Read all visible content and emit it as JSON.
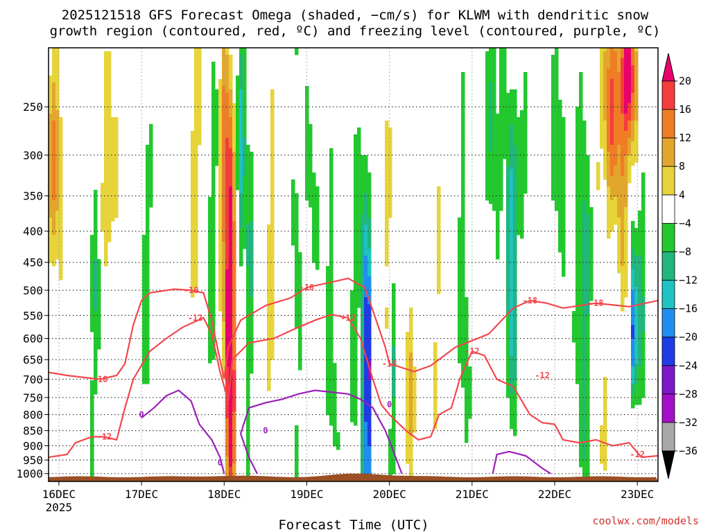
{
  "title": {
    "line1": "2025121518 GFS Forecast Omega (shaded, −cm/s) for KLWM with dendritic snow",
    "line2": "growth region (contoured, red, ºC) and freezing level (contoured, purple, ºC)"
  },
  "x_axis_label": "Forecast Time (UTC)",
  "credit": "coolwx.com/models",
  "chart_data": {
    "type": "heatmap",
    "title": "2025121518 GFS Forecast Omega (shaded, −cm/s) for KLWM with dendritic snow growth region (contoured, red, ºC) and freezing level (contoured, purple, ºC)",
    "xlabel": "Forecast Time (UTC)",
    "ylabel": "",
    "x_ticks": [
      {
        "value": 0,
        "label": "16DEC",
        "sublabel": "2025"
      },
      {
        "value": 1,
        "label": "17DEC"
      },
      {
        "value": 2,
        "label": "18DEC"
      },
      {
        "value": 3,
        "label": "19DEC"
      },
      {
        "value": 4,
        "label": "20DEC"
      },
      {
        "value": 5,
        "label": "21DEC"
      },
      {
        "value": 6,
        "label": "22DEC"
      },
      {
        "value": 7,
        "label": "23DEC"
      }
    ],
    "xlim": [
      -0.125,
      7.25
    ],
    "y_ticks": [
      250,
      300,
      350,
      400,
      450,
      500,
      550,
      600,
      650,
      700,
      750,
      800,
      850,
      900,
      950,
      1000
    ],
    "ylim": [
      1030,
      200
    ],
    "y_scale": "log",
    "grid": true,
    "colorbar": {
      "ticks": [
        20,
        16,
        12,
        8,
        4,
        -4,
        -8,
        -12,
        -16,
        -20,
        -24,
        -28,
        -32,
        -36
      ],
      "colors": [
        "#e8006e",
        "#f53c3c",
        "#ee7d24",
        "#e3a62c",
        "#e6d43a",
        "#ffffff",
        "#22c82e",
        "#20b67c",
        "#1ec2c2",
        "#1f8ef0",
        "#1f3ce6",
        "#7a18c8",
        "#a30fc8",
        "#a8a8a8",
        "#000000"
      ],
      "extend": "both"
    },
    "snow_growth_contours": {
      "color": "#f2474b",
      "levels": [
        -12,
        -18
      ],
      "upper_-18": [
        [
          -0.125,
          682
        ],
        [
          0.1,
          690
        ],
        [
          0.5,
          700
        ],
        [
          0.7,
          690
        ],
        [
          0.8,
          660
        ],
        [
          0.9,
          570
        ],
        [
          1.0,
          520
        ],
        [
          1.1,
          505
        ],
        [
          1.4,
          498
        ],
        [
          1.6,
          500
        ],
        [
          1.75,
          505
        ],
        [
          1.85,
          560
        ],
        [
          1.95,
          650
        ],
        [
          2.0,
          700
        ],
        [
          2.05,
          620
        ],
        [
          2.2,
          560
        ],
        [
          2.5,
          530
        ],
        [
          2.8,
          515
        ],
        [
          3.0,
          495
        ],
        [
          3.3,
          485
        ],
        [
          3.5,
          478
        ],
        [
          3.7,
          495
        ],
        [
          3.8,
          540
        ],
        [
          3.95,
          620
        ],
        [
          4.0,
          660
        ],
        [
          4.3,
          680
        ],
        [
          4.5,
          665
        ],
        [
          4.8,
          620
        ],
        [
          5.0,
          605
        ],
        [
          5.2,
          590
        ],
        [
          5.5,
          535
        ],
        [
          5.7,
          520
        ],
        [
          5.9,
          525
        ],
        [
          6.0,
          530
        ],
        [
          6.1,
          535
        ],
        [
          6.5,
          525
        ],
        [
          6.9,
          532
        ],
        [
          7.25,
          520
        ]
      ],
      "lower_-12": [
        [
          -0.125,
          940
        ],
        [
          0.1,
          930
        ],
        [
          0.2,
          890
        ],
        [
          0.4,
          870
        ],
        [
          0.55,
          870
        ],
        [
          0.7,
          880
        ],
        [
          0.8,
          780
        ],
        [
          0.9,
          700
        ],
        [
          1.1,
          630
        ],
        [
          1.3,
          600
        ],
        [
          1.5,
          575
        ],
        [
          1.75,
          555
        ],
        [
          1.85,
          590
        ],
        [
          1.95,
          680
        ],
        [
          2.05,
          760
        ],
        [
          2.1,
          650
        ],
        [
          2.3,
          610
        ],
        [
          2.6,
          600
        ],
        [
          2.9,
          575
        ],
        [
          3.1,
          560
        ],
        [
          3.3,
          548
        ],
        [
          3.5,
          555
        ],
        [
          3.65,
          600
        ],
        [
          3.8,
          700
        ],
        [
          3.9,
          770
        ],
        [
          4.0,
          800
        ],
        [
          4.2,
          850
        ],
        [
          4.35,
          880
        ],
        [
          4.5,
          870
        ],
        [
          4.6,
          800
        ],
        [
          4.75,
          780
        ],
        [
          4.85,
          700
        ],
        [
          5.0,
          630
        ],
        [
          5.15,
          640
        ],
        [
          5.3,
          700
        ],
        [
          5.5,
          720
        ],
        [
          5.7,
          800
        ],
        [
          5.85,
          825
        ],
        [
          6.0,
          830
        ],
        [
          6.1,
          880
        ],
        [
          6.3,
          890
        ],
        [
          6.5,
          880
        ],
        [
          6.7,
          900
        ],
        [
          6.9,
          890
        ],
        [
          7.05,
          940
        ],
        [
          7.25,
          935
        ]
      ]
    },
    "freezing_contours": {
      "color": "#9b1fb8",
      "level": 0,
      "segments": [
        [
          [
            1.0,
            810
          ],
          [
            1.15,
            780
          ],
          [
            1.3,
            745
          ],
          [
            1.45,
            730
          ],
          [
            1.6,
            760
          ],
          [
            1.7,
            830
          ],
          [
            1.85,
            880
          ],
          [
            1.95,
            940
          ],
          [
            2.0,
            1000
          ]
        ],
        [
          [
            2.4,
            1000
          ],
          [
            2.3,
            940
          ],
          [
            2.2,
            860
          ],
          [
            2.3,
            780
          ],
          [
            2.5,
            765
          ],
          [
            2.7,
            755
          ],
          [
            2.9,
            740
          ],
          [
            3.1,
            730
          ],
          [
            3.3,
            735
          ],
          [
            3.5,
            740
          ],
          [
            3.65,
            755
          ],
          [
            3.8,
            780
          ],
          [
            3.95,
            850
          ],
          [
            4.05,
            920
          ],
          [
            4.15,
            1000
          ]
        ],
        [
          [
            5.25,
            1000
          ],
          [
            5.3,
            930
          ],
          [
            5.45,
            920
          ],
          [
            5.65,
            935
          ],
          [
            5.85,
            980
          ],
          [
            5.95,
            1000
          ]
        ]
      ]
    },
    "terrain_color": "#9b4f24"
  }
}
